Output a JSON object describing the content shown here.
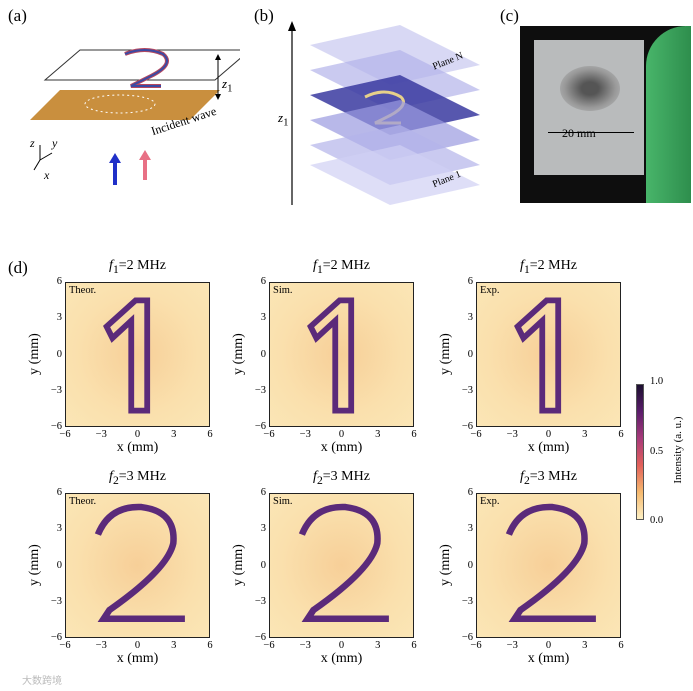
{
  "panels": {
    "a": {
      "label": "(a)",
      "z_label": "z",
      "z_sub": "1",
      "incident": "Incident wave",
      "axes": {
        "z": "z",
        "y": "y",
        "x": "x"
      }
    },
    "b": {
      "label": "(b)",
      "plane_n": "Plane N",
      "plane_1": "Plane 1",
      "z_label": "z",
      "z_sub": "1"
    },
    "c": {
      "label": "(c)",
      "scale": "20 mm"
    },
    "d": {
      "label": "(d)"
    }
  },
  "colorbar": {
    "max": "1.0",
    "mid": "0.5",
    "min": "0.0",
    "label": "Intensity (a. u.)"
  },
  "grid": {
    "rows": [
      {
        "f": "f",
        "sub": "1",
        "freq": "=2 MHz",
        "digit": "1"
      },
      {
        "f": "f",
        "sub": "2",
        "freq": "=3 MHz",
        "digit": "2"
      }
    ],
    "cols": [
      "Theor.",
      "Sim.",
      "Exp."
    ],
    "xlabel": "x (mm)",
    "ylabel": "y (mm)",
    "xticks": [
      "−6",
      "−3",
      "0",
      "3",
      "6"
    ],
    "yticks": [
      "6",
      "3",
      "0",
      "−3",
      "−6"
    ]
  },
  "watermark": "大数跨境",
  "colors": {
    "low": "#fdf0c4",
    "mid": "#e2615a",
    "high": "#1c0f30",
    "paper": "#c98f3e"
  }
}
